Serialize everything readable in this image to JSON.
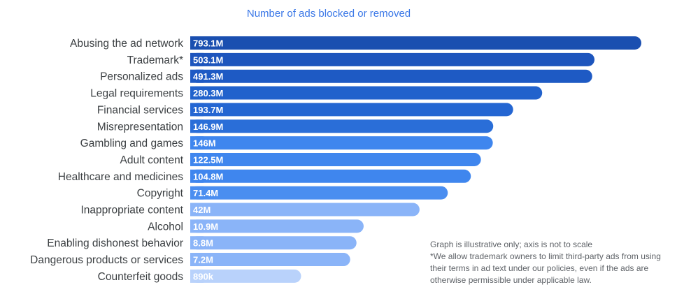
{
  "chart_data": {
    "type": "bar",
    "orientation": "horizontal",
    "title": "Number of ads blocked or removed",
    "categories": [
      "Abusing the ad network",
      "Trademark*",
      "Personalized ads",
      "Legal requirements",
      "Financial services",
      "Misrepresentation",
      "Gambling and games",
      "Adult content",
      "Healthcare and medicines",
      "Copyright",
      "Inappropriate content",
      "Alcohol",
      "Enabling dishonest behavior",
      "Dangerous products or services",
      "Counterfeit goods"
    ],
    "values": [
      793100000,
      503100000,
      491300000,
      280300000,
      193700000,
      146900000,
      146000000,
      122500000,
      104800000,
      71400000,
      42000000,
      10900000,
      8800000,
      7200000,
      890000
    ],
    "value_labels": [
      "793.1M",
      "503.1M",
      "491.3M",
      "280.3M",
      "193.7M",
      "146.9M",
      "146M",
      "122.5M",
      "104.8M",
      "71.4M",
      "42M",
      "10.9M",
      "8.8M",
      "7.2M",
      "890k"
    ],
    "bar_colors": [
      "#1a4fb0",
      "#1d55bd",
      "#1e5ac4",
      "#2162cc",
      "#2466d2",
      "#2a6ed8",
      "#3f86ee",
      "#3f86ee",
      "#3f86ee",
      "#4a8ef0",
      "#8ab4f8",
      "#8ab4f8",
      "#8ab4f8",
      "#8ab4f8",
      "#b9d2fb"
    ],
    "axis_scale": "not to scale",
    "grid": false,
    "legend": "none"
  },
  "notes": {
    "line1": "Graph is illustrative only; axis is not to scale",
    "line2": "*We allow trademark owners to limit third-party ads from using their terms in ad text under our policies, even if the ads are otherwise permissible under applicable law."
  },
  "colors": {
    "title": "#3b78e7",
    "label": "#3c4043",
    "note": "#5f6368"
  }
}
